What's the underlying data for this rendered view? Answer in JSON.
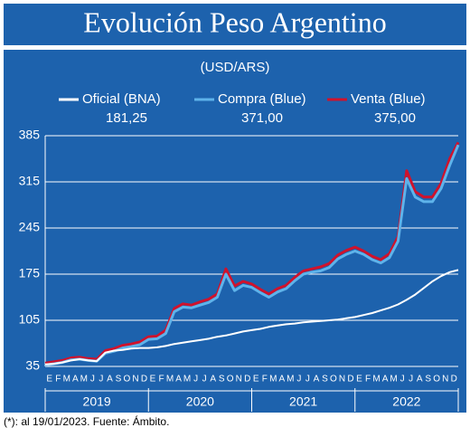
{
  "chart_data": {
    "type": "line",
    "title": "Evolución Peso Argentino",
    "subtitle": "(USD/ARS)",
    "note": "(*): al 19/01/2023. Fuente: Ámbito.",
    "categories": [
      "E",
      "F",
      "M",
      "A",
      "M",
      "J",
      "J",
      "A",
      "S",
      "O",
      "N",
      "D",
      "E",
      "F",
      "M",
      "A",
      "M",
      "J",
      "J",
      "A",
      "S",
      "O",
      "N",
      "D",
      "E",
      "F",
      "M",
      "A",
      "M",
      "J",
      "J",
      "A",
      "S",
      "O",
      "N",
      "D",
      "E",
      "F",
      "M",
      "A",
      "M",
      "J",
      "J",
      "A",
      "S",
      "O",
      "N",
      "D",
      null
    ],
    "years": [
      "2019",
      "2020",
      "2021",
      "2022"
    ],
    "series": [
      {
        "name": "Oficial (BNA)",
        "color": "#ffffff",
        "values": [
          38,
          39,
          41,
          44,
          46,
          44,
          43,
          56,
          59,
          60,
          62,
          63,
          63,
          64,
          66,
          69,
          71,
          73,
          75,
          77,
          80,
          82,
          85,
          88,
          90,
          92,
          95,
          97,
          99,
          100,
          102,
          103,
          104,
          105,
          106,
          108,
          110,
          113,
          116,
          120,
          124,
          129,
          136,
          144,
          154,
          164,
          172,
          178,
          181.25
        ],
        "value_labels": [
          null,
          null,
          null,
          null,
          null,
          null,
          null,
          null,
          null,
          null,
          null,
          null,
          null,
          null,
          null,
          null,
          null,
          null,
          null,
          null,
          null,
          null,
          null,
          null,
          null,
          null,
          null,
          null,
          null,
          null,
          null,
          null,
          null,
          null,
          null,
          null,
          null,
          null,
          null,
          null,
          null,
          null,
          null,
          null,
          null,
          null,
          null,
          null,
          "181,25"
        ]
      },
      {
        "name": "Compra (Blue)",
        "color": "#5eb3ea",
        "values": [
          37,
          39,
          41,
          45,
          46,
          44,
          43,
          55,
          58,
          63,
          65,
          68,
          76,
          77,
          85,
          118,
          125,
          124,
          128,
          132,
          140,
          175,
          150,
          158,
          155,
          147,
          140,
          148,
          153,
          165,
          175,
          178,
          180,
          185,
          198,
          205,
          210,
          205,
          197,
          192,
          200,
          225,
          320,
          292,
          285,
          285,
          305,
          340,
          371
        ],
        "value_labels": [
          null,
          null,
          null,
          null,
          null,
          null,
          null,
          null,
          null,
          null,
          null,
          null,
          null,
          null,
          null,
          null,
          null,
          null,
          null,
          null,
          null,
          null,
          null,
          null,
          null,
          null,
          null,
          null,
          null,
          null,
          null,
          null,
          null,
          null,
          null,
          null,
          null,
          null,
          null,
          null,
          null,
          null,
          null,
          null,
          null,
          null,
          null,
          null,
          "371,00"
        ]
      },
      {
        "name": "Venta (Blue)",
        "color": "#d0122c",
        "values": [
          40,
          42,
          44,
          48,
          49,
          47,
          46,
          59,
          62,
          67,
          69,
          72,
          80,
          81,
          90,
          123,
          130,
          128,
          133,
          137,
          145,
          183,
          157,
          164,
          160,
          152,
          145,
          153,
          158,
          170,
          180,
          183,
          186,
          191,
          204,
          211,
          216,
          210,
          202,
          197,
          206,
          232,
          332,
          300,
          292,
          292,
          313,
          350,
          375
        ],
        "value_labels": [
          null,
          null,
          null,
          null,
          null,
          null,
          null,
          null,
          null,
          null,
          null,
          null,
          null,
          null,
          null,
          null,
          null,
          null,
          null,
          null,
          null,
          null,
          null,
          null,
          null,
          null,
          null,
          null,
          null,
          null,
          null,
          null,
          null,
          null,
          null,
          null,
          null,
          null,
          null,
          null,
          null,
          null,
          null,
          null,
          null,
          null,
          null,
          null,
          "375,00"
        ]
      }
    ],
    "ylim": [
      35,
      385
    ],
    "yticks": [
      35,
      105,
      175,
      245,
      315,
      385
    ],
    "grid": true
  }
}
